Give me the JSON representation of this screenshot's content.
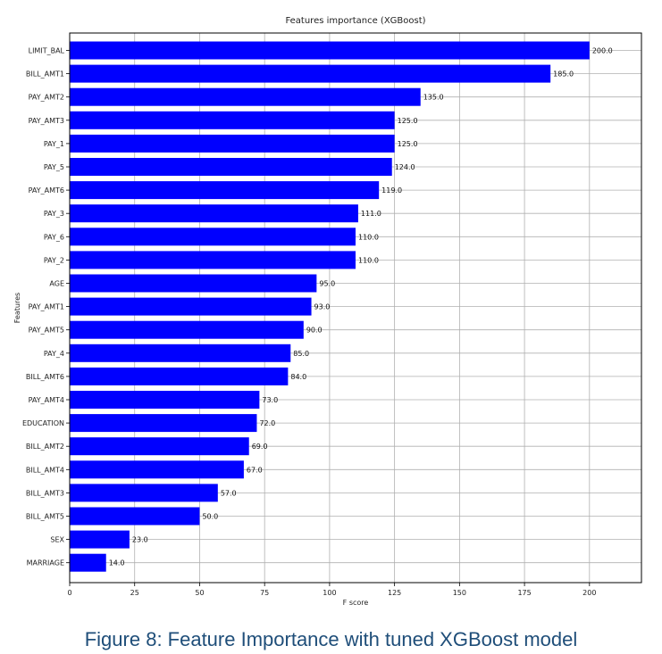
{
  "chart_data": {
    "type": "bar",
    "orientation": "horizontal",
    "title": "Features importance (XGBoost)",
    "xlabel": "F score",
    "ylabel": "Features",
    "xlim": [
      0,
      220
    ],
    "xticks": [
      0,
      25,
      50,
      75,
      100,
      125,
      150,
      175,
      200
    ],
    "grid": true,
    "bar_color": "#0000ff",
    "categories": [
      "LIMIT_BAL",
      "BILL_AMT1",
      "PAY_AMT2",
      "PAY_AMT3",
      "PAY_1",
      "PAY_5",
      "PAY_AMT6",
      "PAY_3",
      "PAY_6",
      "PAY_2",
      "AGE",
      "PAY_AMT1",
      "PAY_AMT5",
      "PAY_4",
      "BILL_AMT6",
      "PAY_AMT4",
      "EDUCATION",
      "BILL_AMT2",
      "BILL_AMT4",
      "BILL_AMT3",
      "BILL_AMT5",
      "SEX",
      "MARRIAGE"
    ],
    "values": [
      200,
      185,
      135,
      125,
      125,
      124,
      119,
      111,
      110,
      110,
      95,
      93,
      90,
      85,
      84,
      73,
      72,
      69,
      67,
      57,
      50,
      23,
      14
    ],
    "value_labels": [
      "200.0",
      "185.0",
      "135.0",
      "125.0",
      "125.0",
      "124.0",
      "119.0",
      "111.0",
      "110.0",
      "110.0",
      "95.0",
      "93.0",
      "90.0",
      "85.0",
      "84.0",
      "73.0",
      "72.0",
      "69.0",
      "67.0",
      "57.0",
      "50.0",
      "23.0",
      "14.0"
    ]
  },
  "caption": "Figure 8: Feature Importance with tuned XGBoost model"
}
